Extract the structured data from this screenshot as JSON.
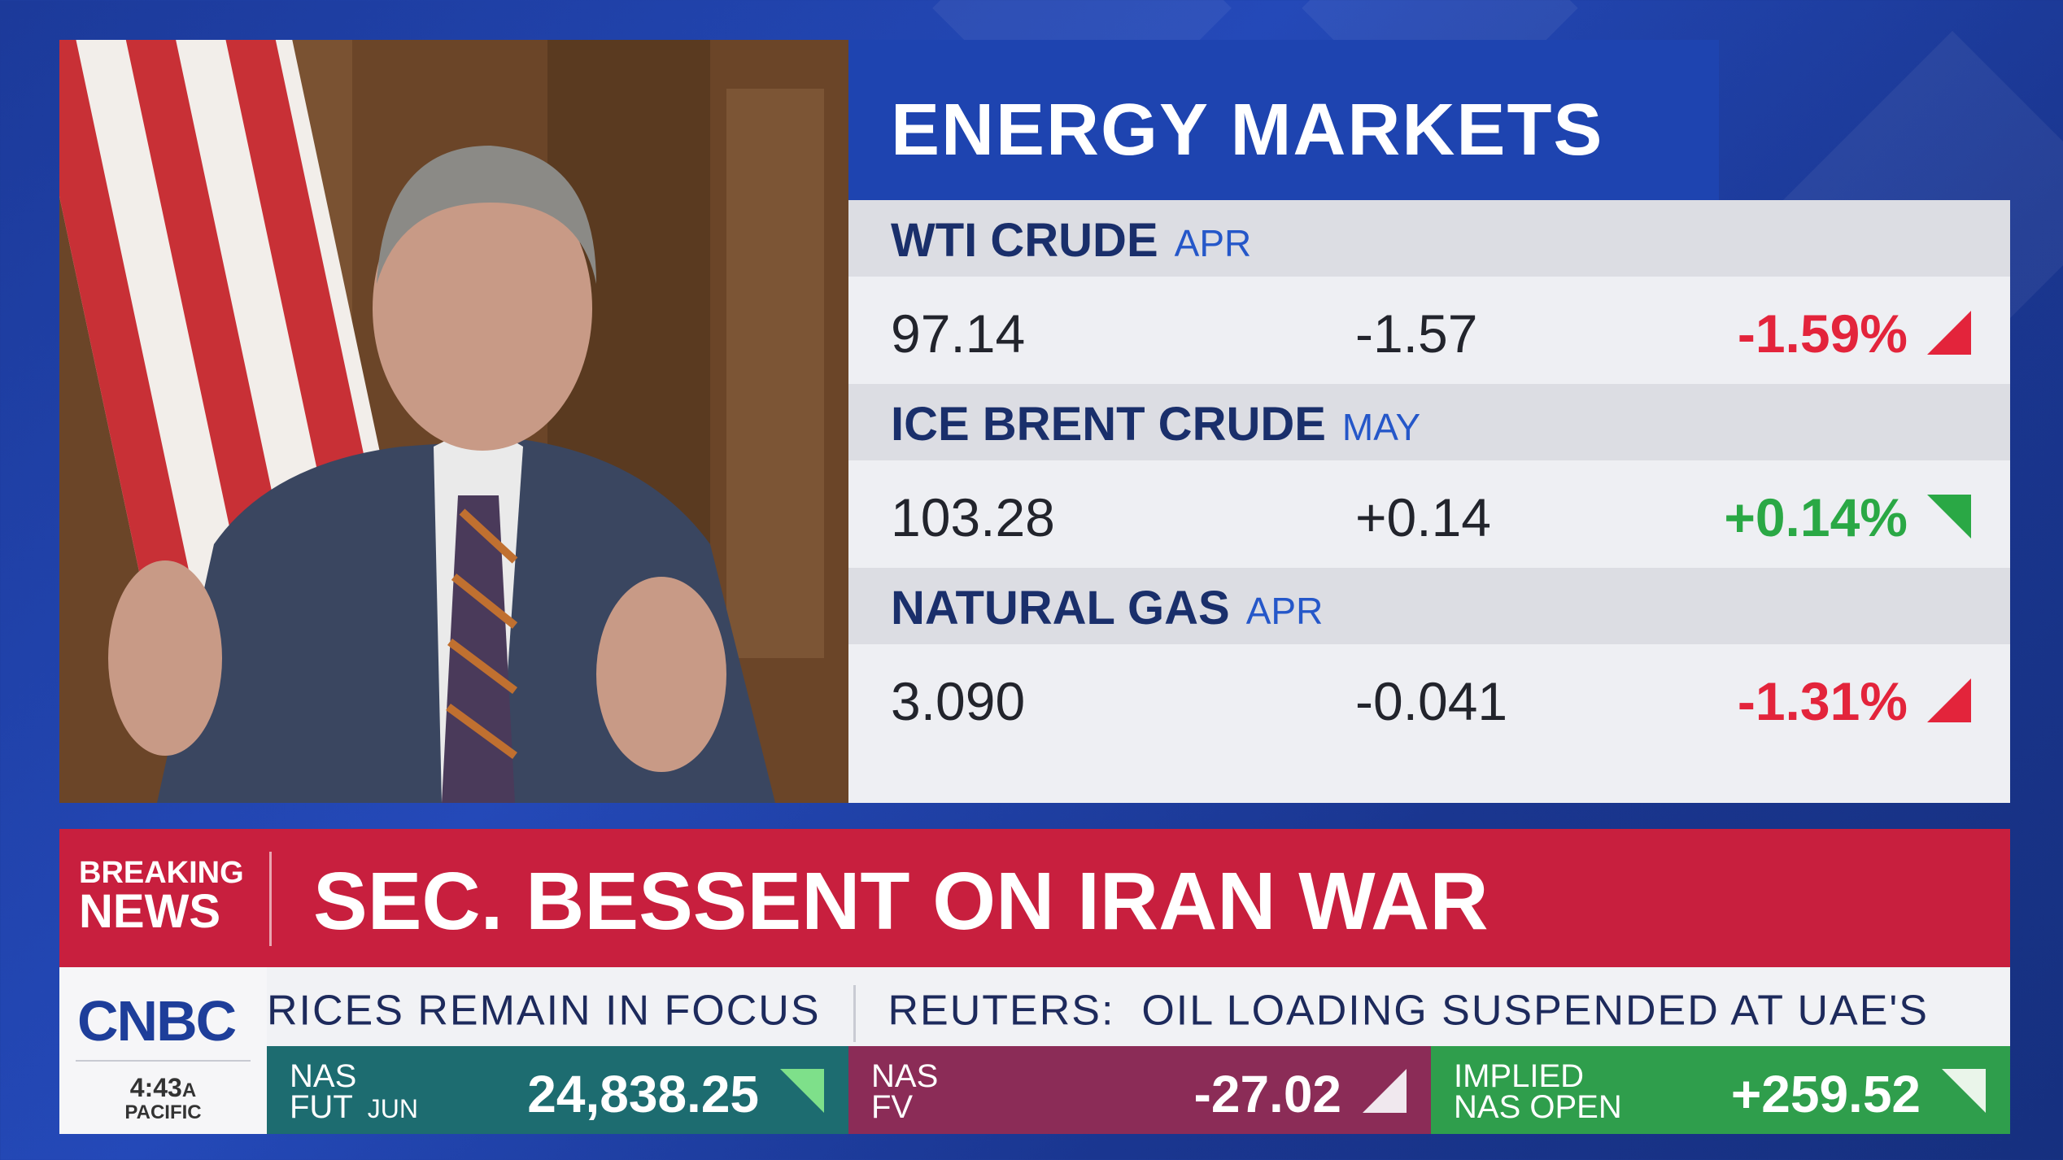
{
  "panel": {
    "title": "ENERGY MARKETS",
    "rows": [
      {
        "name": "WTI CRUDE",
        "contract": "APR",
        "price": "97.14",
        "change": "-1.57",
        "percent": "-1.59%"
      },
      {
        "name": "ICE BRENT CRUDE",
        "contract": "MAY",
        "price": "103.28",
        "change": "+0.14",
        "percent": "+0.14%"
      },
      {
        "name": "NATURAL GAS",
        "contract": "APR",
        "price": "3.090",
        "change": "-0.041",
        "percent": "-1.31%"
      }
    ]
  },
  "banner": {
    "label_top": "BREAKING",
    "label_bottom": "NEWS",
    "headline": "SEC. BESSENT ON IRAN WAR"
  },
  "ticker": {
    "items": [
      "RICES REMAIN IN FOCUS",
      "REUTERS:",
      "OIL LOADING SUSPENDED AT UAE'S"
    ]
  },
  "network": {
    "logo": "CNBC",
    "time": "4:43",
    "meridiem": "A",
    "zone": "PACIFIC"
  },
  "quotes": [
    {
      "label_top": "NAS",
      "label_bottom": "FUT",
      "contract": "JUN",
      "value": "24,838.25"
    },
    {
      "label_top": "NAS",
      "label_bottom": "FV",
      "value": "-27.02"
    },
    {
      "label_top": "IMPLIED",
      "label_bottom": "NAS OPEN",
      "value": "+259.52"
    }
  ]
}
